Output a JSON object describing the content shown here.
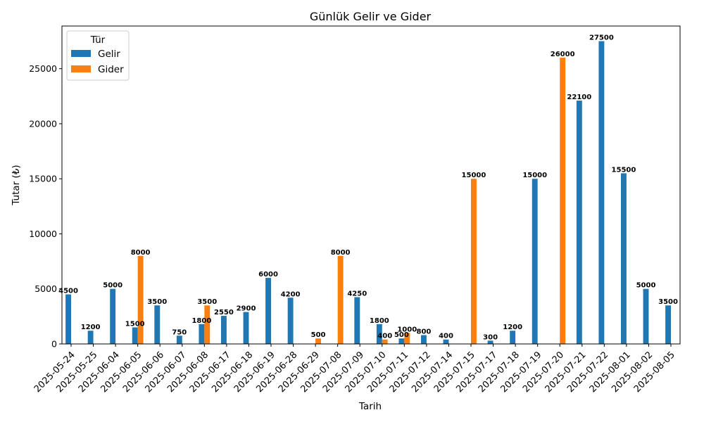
{
  "chart_data": {
    "type": "bar",
    "title": "Günlük Gelir ve Gider",
    "xlabel": "Tarih",
    "ylabel": "Tutar (₺)",
    "ylim": [
      0,
      28875
    ],
    "yticks": [
      0,
      5000,
      10000,
      15000,
      20000,
      25000
    ],
    "grid": false,
    "legend": {
      "title": "Tür",
      "position": "top-left"
    },
    "categories": [
      "2025-05-24",
      "2025-05-25",
      "2025-06-04",
      "2025-06-05",
      "2025-06-06",
      "2025-06-07",
      "2025-06-08",
      "2025-06-17",
      "2025-06-18",
      "2025-06-19",
      "2025-06-28",
      "2025-06-29",
      "2025-07-08",
      "2025-07-09",
      "2025-07-10",
      "2025-07-11",
      "2025-07-12",
      "2025-07-14",
      "2025-07-15",
      "2025-07-17",
      "2025-07-18",
      "2025-07-19",
      "2025-07-20",
      "2025-07-21",
      "2025-07-22",
      "2025-08-01",
      "2025-08-02",
      "2025-08-05"
    ],
    "series": [
      {
        "name": "Gelir",
        "color": "#1f77b4",
        "values": [
          4500,
          1200,
          5000,
          1500,
          3500,
          750,
          1800,
          2550,
          2900,
          6000,
          4200,
          null,
          null,
          4250,
          1800,
          500,
          800,
          400,
          null,
          300,
          1200,
          15000,
          null,
          22100,
          27500,
          15500,
          5000,
          3500
        ]
      },
      {
        "name": "Gider",
        "color": "#ff7f0e",
        "values": [
          null,
          null,
          null,
          8000,
          null,
          null,
          3500,
          null,
          null,
          null,
          null,
          500,
          8000,
          null,
          400,
          1000,
          null,
          null,
          15000,
          null,
          null,
          null,
          26000,
          null,
          null,
          null,
          null,
          null
        ]
      }
    ]
  }
}
